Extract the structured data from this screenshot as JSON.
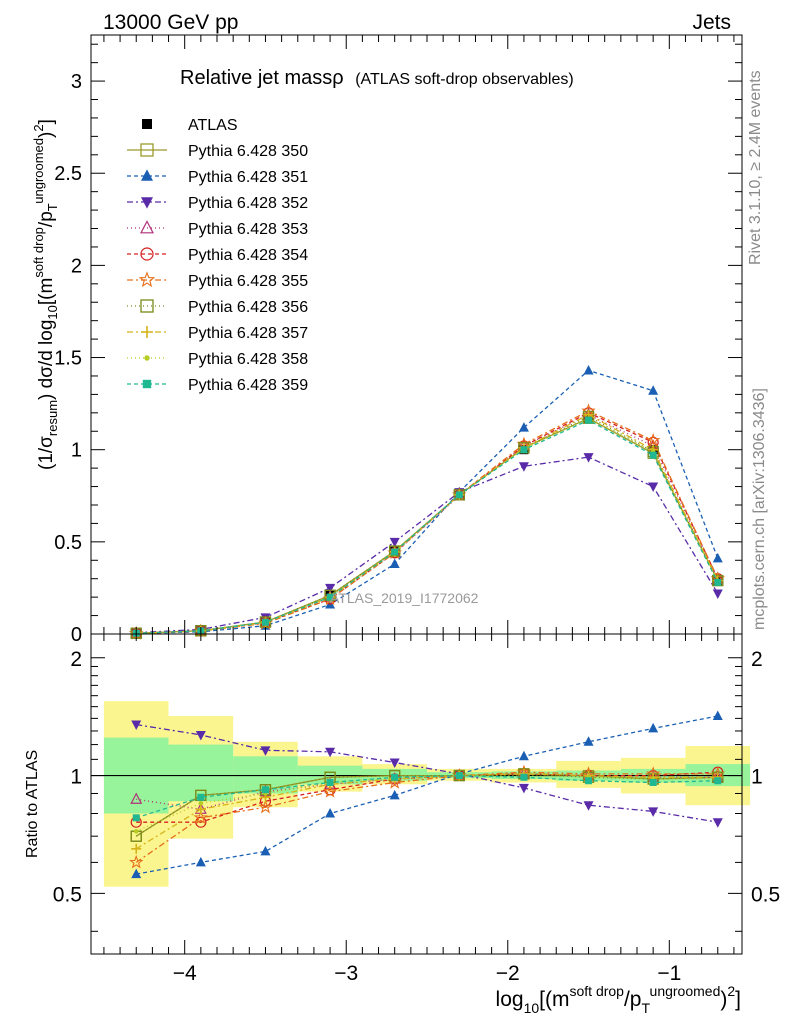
{
  "header": {
    "left": "13000 GeV pp",
    "right": "Jets"
  },
  "side_labels": {
    "rivet": "Rivet 3.1.10, ≥ 2.4M events",
    "mcplots": "mcplots.cern.ch [arXiv:1306.3436]"
  },
  "chart_data": [
    {
      "type": "line",
      "panel": "main",
      "title": "Relative jet massρ",
      "subtitle": "(ATLAS soft-drop observables)",
      "watermark": "ATLAS_2019_I1772062",
      "ylabel": "(1/σresum) dσ/d log10[(m soft drop/pT ungroomed)2]",
      "ylabel_parts": {
        "a": "(1/σ",
        "sub1": "resum",
        "b": ") dσ/d log",
        "sub2": "10",
        "c": "[(m",
        "sup1": "soft drop",
        "d": "/p",
        "sub3": "T",
        "sup2": "ungroomed",
        "e": ")",
        "sup3": "2",
        "f": "]"
      },
      "xlim": [
        -4.58,
        -0.55
      ],
      "ylim": [
        0,
        3.25
      ],
      "ytick_labels": [
        "0",
        "0.5",
        "1",
        "1.5",
        "2",
        "2.5",
        "3"
      ],
      "x": [
        -4.3,
        -3.9,
        -3.5,
        -3.1,
        -2.7,
        -2.3,
        -1.9,
        -1.5,
        -1.1,
        -0.7
      ],
      "series": [
        {
          "name": "ATLAS",
          "color": "#000000",
          "marker": "square-filled",
          "dash": "none",
          "values": [
            0.005,
            0.02,
            0.07,
            0.21,
            0.45,
            0.75,
            1.0,
            1.17,
            1.0,
            0.29
          ]
        },
        {
          "name": "Pythia 6.428 350",
          "color": "#9a9a2a",
          "marker": "square-open",
          "dash": "solid",
          "values": [
            0.004,
            0.018,
            0.065,
            0.21,
            0.45,
            0.755,
            1.01,
            1.17,
            0.98,
            0.29
          ]
        },
        {
          "name": "Pythia 6.428 351",
          "color": "#1a5fb4",
          "marker": "triangle-up-filled",
          "dash": "4,3",
          "values": [
            0.003,
            0.012,
            0.045,
            0.16,
            0.38,
            0.77,
            1.12,
            1.43,
            1.32,
            0.41
          ]
        },
        {
          "name": "Pythia 6.428 352",
          "color": "#5a2ba8",
          "marker": "triangle-down-filled",
          "dash": "6,3,2,3",
          "values": [
            0.007,
            0.025,
            0.09,
            0.25,
            0.5,
            0.77,
            0.91,
            0.96,
            0.8,
            0.22
          ]
        },
        {
          "name": "Pythia 6.428 353",
          "color": "#b0307a",
          "marker": "triangle-up-open",
          "dash": "1,3",
          "values": [
            0.004,
            0.017,
            0.065,
            0.2,
            0.44,
            0.75,
            1.02,
            1.19,
            1.02,
            0.3
          ]
        },
        {
          "name": "Pythia 6.428 354",
          "color": "#d62020",
          "marker": "circle-open",
          "dash": "4,3",
          "values": [
            0.004,
            0.016,
            0.062,
            0.19,
            0.44,
            0.755,
            1.02,
            1.2,
            1.04,
            0.3
          ]
        },
        {
          "name": "Pythia 6.428 355",
          "color": "#e6701a",
          "marker": "star-open",
          "dash": "6,3,2,3",
          "values": [
            0.003,
            0.016,
            0.058,
            0.19,
            0.44,
            0.755,
            1.03,
            1.21,
            1.05,
            0.3
          ]
        },
        {
          "name": "Pythia 6.428 356",
          "color": "#7a8a18",
          "marker": "square-open",
          "dash": "1,3",
          "values": [
            0.004,
            0.018,
            0.065,
            0.21,
            0.45,
            0.755,
            1.01,
            1.18,
            0.99,
            0.29
          ]
        },
        {
          "name": "Pythia 6.428 357",
          "color": "#d6b418",
          "marker": "cross",
          "dash": "6,3,2,3",
          "values": [
            0.004,
            0.017,
            0.063,
            0.2,
            0.445,
            0.755,
            1.01,
            1.19,
            1.0,
            0.29
          ]
        },
        {
          "name": "Pythia 6.428 358",
          "color": "#b6cc20",
          "marker": "dot",
          "dash": "1,3",
          "values": [
            0.004,
            0.017,
            0.064,
            0.2,
            0.445,
            0.755,
            1.005,
            1.17,
            0.99,
            0.29
          ]
        },
        {
          "name": "Pythia 6.428 359",
          "color": "#20b890",
          "marker": "square-filled-small",
          "dash": "4,3",
          "values": [
            0.004,
            0.017,
            0.064,
            0.2,
            0.445,
            0.755,
            1.0,
            1.16,
            0.97,
            0.28
          ]
        }
      ]
    },
    {
      "type": "line",
      "panel": "ratio",
      "ylabel": "Ratio to ATLAS",
      "xlabel": "log10[(m soft drop/pT ungroomed)2]",
      "xlabel_parts": {
        "a": "log",
        "sub1": "10",
        "b": "[(m",
        "sup1": "soft drop",
        "c": "/p",
        "sub2": "T",
        "sup2": "ungroomed",
        "d": ")",
        "sup3": "2",
        "e": "]"
      },
      "xlim": [
        -4.58,
        -0.55
      ],
      "ylim": [
        0.35,
        2.3
      ],
      "log_y": true,
      "ytick_labels": [
        "0.5",
        "1",
        "2"
      ],
      "xtick_labels": [
        "−4",
        "−3",
        "−2",
        "−1"
      ],
      "uncertainty_bands": {
        "edges": [
          -4.5,
          -4.1,
          -3.7,
          -3.3,
          -2.9,
          -2.5,
          -2.1,
          -1.7,
          -1.3,
          -0.9,
          -0.5
        ],
        "green": [
          [
            0.8,
            1.25
          ],
          [
            0.86,
            1.2
          ],
          [
            0.9,
            1.12
          ],
          [
            0.95,
            1.06
          ],
          [
            0.97,
            1.04
          ],
          [
            0.985,
            1.02
          ],
          [
            0.98,
            1.025
          ],
          [
            0.97,
            1.03
          ],
          [
            0.96,
            1.04
          ],
          [
            0.94,
            1.07
          ]
        ],
        "yellow": [
          [
            0.52,
            1.55
          ],
          [
            0.69,
            1.42
          ],
          [
            0.83,
            1.22
          ],
          [
            0.91,
            1.12
          ],
          [
            0.95,
            1.07
          ],
          [
            0.97,
            1.04
          ],
          [
            0.96,
            1.04
          ],
          [
            0.93,
            1.09
          ],
          [
            0.9,
            1.11
          ],
          [
            0.84,
            1.19
          ]
        ]
      },
      "series": [
        {
          "name": "Pythia 6.428 350",
          "values": [
            0.7,
            0.89,
            0.92,
            0.99,
            1.0,
            1.0,
            1.01,
            1.0,
            0.98,
            0.99
          ]
        },
        {
          "name": "Pythia 6.428 351",
          "values": [
            0.56,
            0.6,
            0.64,
            0.8,
            0.89,
            1.01,
            1.12,
            1.22,
            1.32,
            1.42
          ]
        },
        {
          "name": "Pythia 6.428 352",
          "values": [
            1.35,
            1.27,
            1.16,
            1.15,
            1.08,
            1.01,
            0.93,
            0.84,
            0.81,
            0.76
          ]
        },
        {
          "name": "Pythia 6.428 353",
          "values": [
            0.87,
            0.82,
            0.91,
            0.95,
            0.98,
            1.0,
            1.01,
            1.0,
            0.99,
            0.99
          ]
        },
        {
          "name": "Pythia 6.428 354",
          "values": [
            0.76,
            0.76,
            0.86,
            0.92,
            0.98,
            1.0,
            1.01,
            1.0,
            1.0,
            1.02
          ]
        },
        {
          "name": "Pythia 6.428 355",
          "values": [
            0.6,
            0.78,
            0.83,
            0.91,
            0.96,
            1.0,
            1.02,
            1.01,
            1.01,
            1.01
          ]
        },
        {
          "name": "Pythia 6.428 356",
          "values": [
            0.7,
            0.89,
            0.92,
            0.99,
            1.0,
            1.0,
            1.01,
            0.99,
            0.98,
            0.99
          ]
        },
        {
          "name": "Pythia 6.428 357",
          "values": [
            0.65,
            0.82,
            0.88,
            0.95,
            0.98,
            1.0,
            1.01,
            1.0,
            0.99,
            0.99
          ]
        },
        {
          "name": "Pythia 6.428 358",
          "values": [
            0.72,
            0.85,
            0.9,
            0.96,
            0.99,
            1.0,
            1.0,
            0.99,
            0.98,
            0.98
          ]
        },
        {
          "name": "Pythia 6.428 359",
          "values": [
            0.78,
            0.88,
            0.92,
            0.96,
            0.99,
            1.0,
            0.99,
            0.97,
            0.96,
            0.97
          ]
        }
      ]
    }
  ]
}
